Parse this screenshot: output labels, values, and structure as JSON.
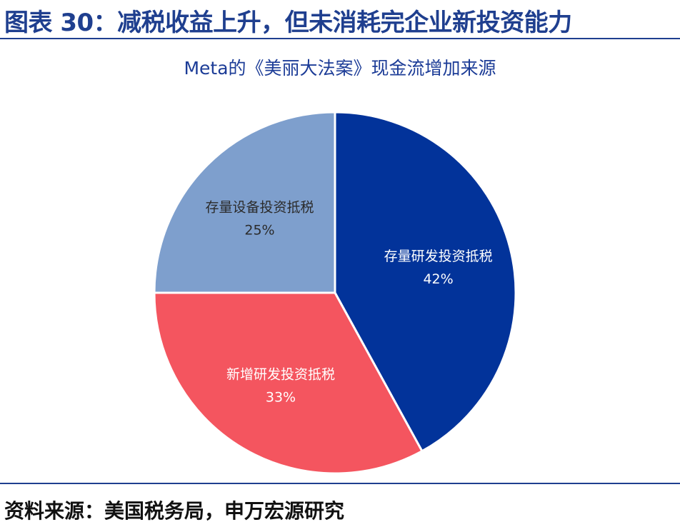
{
  "header": {
    "figure_title": "图表 30：减税收益上升，但未消耗完企业新投资能力"
  },
  "footer": {
    "source": "资料来源：美国税务局，申万宏源研究"
  },
  "chart_data": {
    "type": "pie",
    "title": "Meta的《美丽大法案》现金流增加来源",
    "slices": [
      {
        "label": "存量研发投资抵税",
        "value": 42,
        "value_label": "42%",
        "color": "#02339a",
        "label_color": "#ffffff"
      },
      {
        "label": "新增研发投资抵税",
        "value": 33,
        "value_label": "33%",
        "color": "#f4555f",
        "label_color": "#ffffff"
      },
      {
        "label": "存量设备投资抵税",
        "value": 25,
        "value_label": "25%",
        "color": "#7e9fcd",
        "label_color": "#2b2b2b"
      }
    ],
    "start_angle": "12 o'clock",
    "direction": "clockwise"
  }
}
